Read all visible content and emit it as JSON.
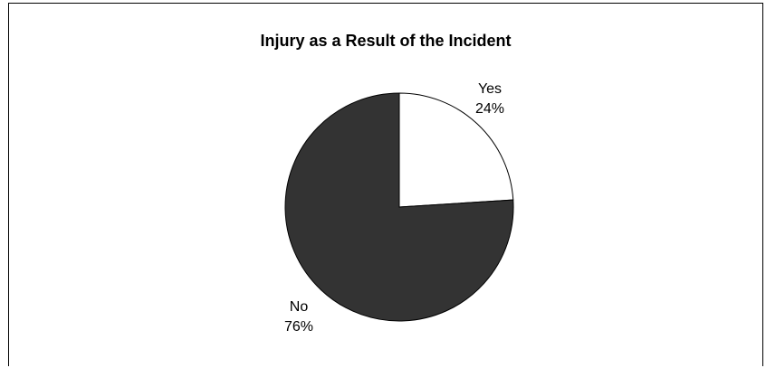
{
  "chart_data": {
    "type": "pie",
    "title": "Injury as a Result of the Incident",
    "slices": [
      {
        "name": "Yes",
        "value": 24,
        "label": "24%",
        "color": "#ffffff"
      },
      {
        "name": "No",
        "value": 76,
        "label": "76%",
        "color": "#333333"
      }
    ],
    "start_angle_deg": 0,
    "direction": "clockwise",
    "outline_color": "#000000",
    "legend": "none"
  }
}
